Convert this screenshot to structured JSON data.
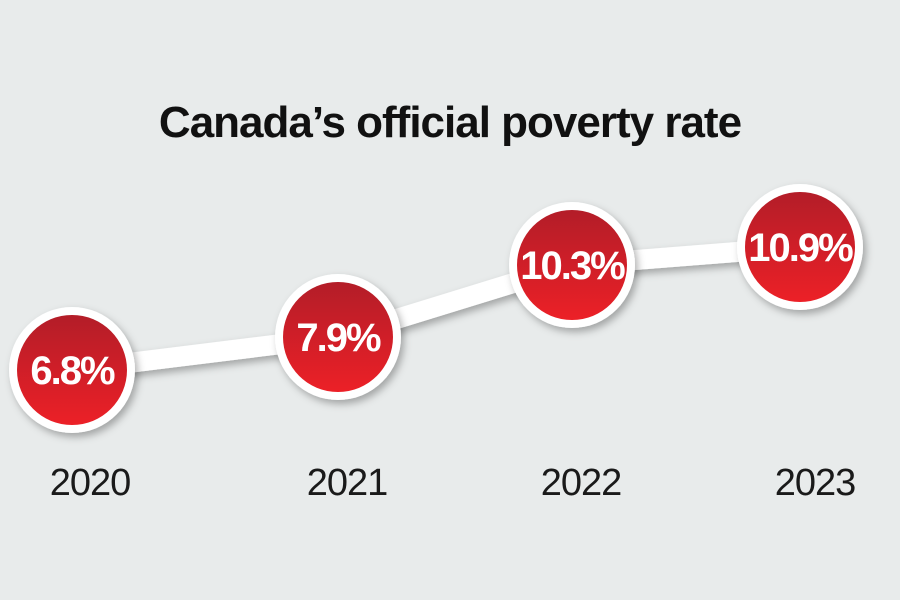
{
  "chart_data": {
    "type": "line",
    "title": "Canada’s official poverty rate",
    "categories": [
      "2020",
      "2021",
      "2022",
      "2023"
    ],
    "values": [
      6.8,
      7.9,
      10.3,
      10.9
    ],
    "data_labels": [
      "6.8%",
      "7.9%",
      "10.3%",
      "10.9%"
    ],
    "xlabel": "",
    "ylabel": "",
    "grid": false,
    "colors": {
      "marker": "#d81f26",
      "marker_border": "#ffffff",
      "line": "#ffffff",
      "background": "#e8ebeb"
    }
  }
}
